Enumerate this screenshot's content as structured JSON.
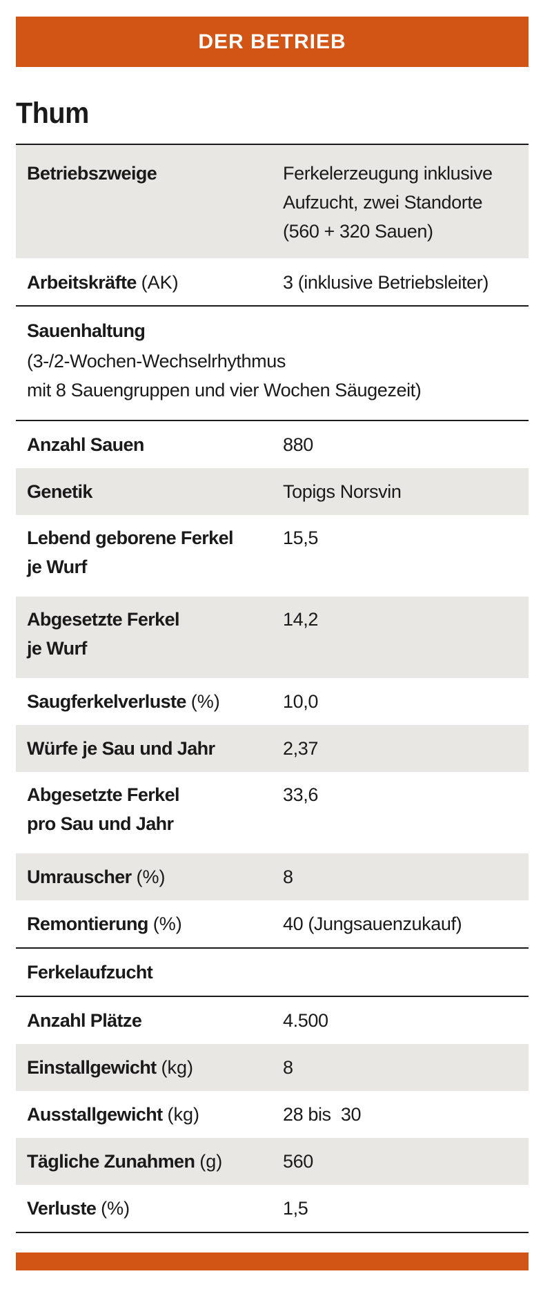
{
  "header": {
    "title": "DER BETRIEB"
  },
  "farm": {
    "name": "Thum"
  },
  "rows": {
    "betriebszweige": {
      "label": "Betriebszweige",
      "value_lines": [
        "Ferkelerzeugung inklusive",
        "Aufzucht, zwei Standorte",
        "(560 + 320 Sauen)"
      ]
    },
    "arbeitskraefte": {
      "label": "Arbeitskräfte",
      "unit": "(AK)",
      "value": "3 (inklusive Betriebsleiter)"
    },
    "sauenhaltung": {
      "label": "Sauenhaltung",
      "desc_lines": [
        "(3-/2-Wochen-Wechselrhythmus",
        "mit 8 Sauengruppen und vier Wochen Säugezeit)"
      ]
    },
    "anzahl_sauen": {
      "label": "Anzahl Sauen",
      "value": "880"
    },
    "genetik": {
      "label": "Genetik",
      "value": "Topigs Norsvin"
    },
    "lebend_geboren": {
      "label_lines": [
        "Lebend geborene Ferkel",
        "je Wurf"
      ],
      "value": "15,5"
    },
    "abgesetzt_wurf": {
      "label_lines": [
        "Abgesetzte Ferkel",
        "je Wurf"
      ],
      "value": "14,2"
    },
    "saugferkelverluste": {
      "label": "Saugferkelverluste",
      "unit": "(%)",
      "value": "10,0"
    },
    "wuerfe": {
      "label": "Würfe je Sau und Jahr",
      "value": "2,37"
    },
    "abgesetzt_jahr": {
      "label_lines": [
        "Abgesetzte Ferkel",
        "pro Sau und Jahr"
      ],
      "value": "33,6"
    },
    "umrauscher": {
      "label": "Umrauscher",
      "unit": "(%)",
      "value": "8"
    },
    "remontierung": {
      "label": "Remontierung",
      "unit": "(%)",
      "value": "40 (Jungsauenzukauf)"
    },
    "ferkelaufzucht": {
      "label": "Ferkelaufzucht"
    },
    "anzahl_plaetze": {
      "label": "Anzahl Plätze",
      "value": "4.500"
    },
    "einstallgewicht": {
      "label": "Einstallgewicht",
      "unit": "(kg)",
      "value": "8"
    },
    "ausstallgewicht": {
      "label": "Ausstallgewicht",
      "unit": "(kg)",
      "value": "28 bis  30"
    },
    "zunahmen": {
      "label": "Tägliche Zunahmen",
      "unit": "(g)",
      "value": "560"
    },
    "verluste": {
      "label": "Verluste",
      "unit": "(%)",
      "value": "1,5"
    }
  },
  "colors": {
    "accent": "#d35516",
    "shade": "#e9e7e4",
    "text": "#1a1a1a"
  }
}
